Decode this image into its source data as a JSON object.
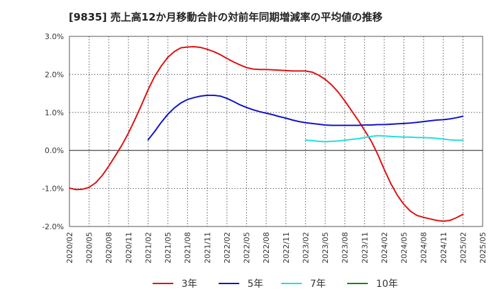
{
  "chart_data": {
    "type": "line",
    "title": "[9835]  売上高12か月移動合計の対前年同期増減率の平均値の推移",
    "xlabel": "",
    "ylabel": "",
    "ylim": [
      -2.0,
      3.0
    ],
    "y_ticks": [
      "3.0%",
      "2.0%",
      "1.0%",
      "0.0%",
      "-1.0%",
      "-2.0%"
    ],
    "y_tick_values": [
      3.0,
      2.0,
      1.0,
      0.0,
      -1.0,
      -2.0
    ],
    "x_ticks": [
      "2020/02",
      "2020/05",
      "2020/08",
      "2020/11",
      "2021/02",
      "2021/05",
      "2021/08",
      "2021/11",
      "2022/02",
      "2022/05",
      "2022/08",
      "2022/11",
      "2023/02",
      "2023/05",
      "2023/08",
      "2023/11",
      "2024/02",
      "2024/05",
      "2024/08",
      "2024/11",
      "2025/02",
      "2025/05"
    ],
    "grid": true,
    "legend_position": "bottom",
    "colors": {
      "3年": "#dd1111",
      "5年": "#1111cc",
      "7年": "#22dddd",
      "10年": "#118811",
      "zero_line": "#333333",
      "grid": "#555555"
    },
    "series": [
      {
        "name": "3年",
        "x": [
          "2020/02",
          "2020/03",
          "2020/04",
          "2020/05",
          "2020/06",
          "2020/07",
          "2020/08",
          "2020/09",
          "2020/10",
          "2020/11",
          "2020/12",
          "2021/01",
          "2021/02",
          "2021/03",
          "2021/04",
          "2021/05",
          "2021/06",
          "2021/07",
          "2021/08",
          "2021/09",
          "2021/10",
          "2021/11",
          "2021/12",
          "2022/01",
          "2022/02",
          "2022/03",
          "2022/04",
          "2022/05",
          "2022/06",
          "2022/07",
          "2022/08",
          "2022/09",
          "2022/10",
          "2022/11",
          "2022/12",
          "2023/01",
          "2023/02",
          "2023/03",
          "2023/04",
          "2023/05",
          "2023/06",
          "2023/07",
          "2023/08",
          "2023/09",
          "2023/10",
          "2023/11",
          "2023/12",
          "2024/01",
          "2024/02",
          "2024/03",
          "2024/04",
          "2024/05",
          "2024/06",
          "2024/07",
          "2024/08",
          "2024/09",
          "2024/10",
          "2024/11",
          "2024/12",
          "2025/01",
          "2025/02"
        ],
        "values": [
          -0.99,
          -1.03,
          -1.02,
          -0.97,
          -0.85,
          -0.66,
          -0.41,
          -0.14,
          0.14,
          0.46,
          0.82,
          1.2,
          1.6,
          1.95,
          2.22,
          2.45,
          2.6,
          2.7,
          2.72,
          2.73,
          2.71,
          2.66,
          2.6,
          2.52,
          2.42,
          2.33,
          2.25,
          2.18,
          2.14,
          2.13,
          2.13,
          2.12,
          2.11,
          2.1,
          2.09,
          2.09,
          2.09,
          2.06,
          1.98,
          1.87,
          1.72,
          1.53,
          1.3,
          1.05,
          0.8,
          0.53,
          0.25,
          -0.1,
          -0.5,
          -0.87,
          -1.18,
          -1.42,
          -1.6,
          -1.71,
          -1.76,
          -1.8,
          -1.84,
          -1.86,
          -1.84,
          -1.77,
          -1.68
        ]
      },
      {
        "name": "5年",
        "x": [
          "2021/02",
          "2021/03",
          "2021/04",
          "2021/05",
          "2021/06",
          "2021/07",
          "2021/08",
          "2021/09",
          "2021/10",
          "2021/11",
          "2021/12",
          "2022/01",
          "2022/02",
          "2022/03",
          "2022/04",
          "2022/05",
          "2022/06",
          "2022/07",
          "2022/08",
          "2022/09",
          "2022/10",
          "2022/11",
          "2022/12",
          "2023/01",
          "2023/02",
          "2023/03",
          "2023/04",
          "2023/05",
          "2023/06",
          "2023/07",
          "2023/08",
          "2023/09",
          "2023/10",
          "2023/11",
          "2023/12",
          "2024/01",
          "2024/02",
          "2024/03",
          "2024/04",
          "2024/05",
          "2024/06",
          "2024/07",
          "2024/08",
          "2024/09",
          "2024/10",
          "2024/11",
          "2024/12",
          "2025/01",
          "2025/02"
        ],
        "values": [
          0.28,
          0.5,
          0.74,
          0.95,
          1.12,
          1.25,
          1.34,
          1.39,
          1.43,
          1.45,
          1.45,
          1.43,
          1.37,
          1.29,
          1.2,
          1.13,
          1.07,
          1.02,
          0.98,
          0.94,
          0.89,
          0.85,
          0.8,
          0.76,
          0.73,
          0.71,
          0.69,
          0.67,
          0.66,
          0.66,
          0.66,
          0.66,
          0.66,
          0.67,
          0.67,
          0.68,
          0.68,
          0.69,
          0.7,
          0.71,
          0.72,
          0.74,
          0.76,
          0.78,
          0.8,
          0.81,
          0.83,
          0.86,
          0.9
        ]
      },
      {
        "name": "7年",
        "x": [
          "2023/02",
          "2023/03",
          "2023/04",
          "2023/05",
          "2023/06",
          "2023/07",
          "2023/08",
          "2023/09",
          "2023/10",
          "2023/11",
          "2023/12",
          "2024/01",
          "2024/02",
          "2024/03",
          "2024/04",
          "2024/05",
          "2024/06",
          "2024/07",
          "2024/08",
          "2024/09",
          "2024/10",
          "2024/11",
          "2024/12",
          "2025/01",
          "2025/02"
        ],
        "values": [
          0.27,
          0.26,
          0.24,
          0.23,
          0.24,
          0.25,
          0.27,
          0.29,
          0.31,
          0.34,
          0.37,
          0.39,
          0.38,
          0.37,
          0.36,
          0.35,
          0.35,
          0.34,
          0.34,
          0.33,
          0.32,
          0.3,
          0.28,
          0.27,
          0.27
        ]
      },
      {
        "name": "10年",
        "x": [],
        "values": []
      }
    ]
  }
}
